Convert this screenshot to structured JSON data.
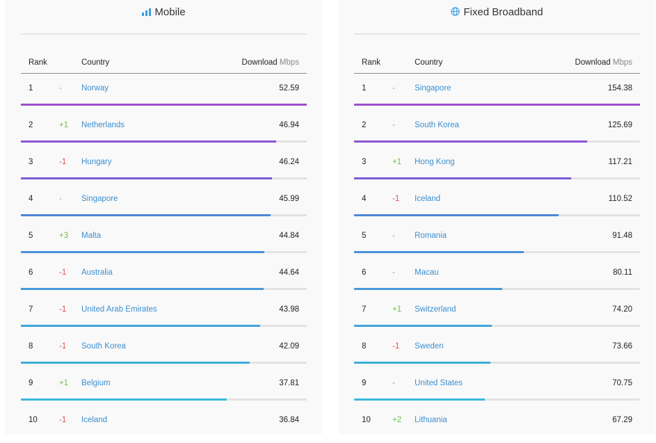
{
  "panels": [
    {
      "title": "Mobile",
      "icon": "signal-bars-icon",
      "header": {
        "rank": "Rank",
        "country": "Country",
        "download": "Download",
        "unit": "Mbps"
      },
      "rows": [
        {
          "rank": "1",
          "change": "-",
          "country": "Norway",
          "value": "52.59"
        },
        {
          "rank": "2",
          "change": "+1",
          "country": "Netherlands",
          "value": "46.94"
        },
        {
          "rank": "3",
          "change": "-1",
          "country": "Hungary",
          "value": "46.24"
        },
        {
          "rank": "4",
          "change": "-",
          "country": "Singapore",
          "value": "45.99"
        },
        {
          "rank": "5",
          "change": "+3",
          "country": "Malta",
          "value": "44.84"
        },
        {
          "rank": "6",
          "change": "-1",
          "country": "Australia",
          "value": "44.64"
        },
        {
          "rank": "7",
          "change": "-1",
          "country": "United Arab Emirates",
          "value": "43.98"
        },
        {
          "rank": "8",
          "change": "-1",
          "country": "South Korea",
          "value": "42.09"
        },
        {
          "rank": "9",
          "change": "+1",
          "country": "Belgium",
          "value": "37.81"
        },
        {
          "rank": "10",
          "change": "-1",
          "country": "Iceland",
          "value": "36.84"
        }
      ]
    },
    {
      "title": "Fixed Broadband",
      "icon": "globe-icon",
      "header": {
        "rank": "Rank",
        "country": "Country",
        "download": "Download",
        "unit": "Mbps"
      },
      "rows": [
        {
          "rank": "1",
          "change": "-",
          "country": "Singapore",
          "value": "154.38"
        },
        {
          "rank": "2",
          "change": "-",
          "country": "South Korea",
          "value": "125.69"
        },
        {
          "rank": "3",
          "change": "+1",
          "country": "Hong Kong",
          "value": "117.21"
        },
        {
          "rank": "4",
          "change": "-1",
          "country": "Iceland",
          "value": "110.52"
        },
        {
          "rank": "5",
          "change": "-",
          "country": "Romania",
          "value": "91.48"
        },
        {
          "rank": "6",
          "change": "-",
          "country": "Macau",
          "value": "80.11"
        },
        {
          "rank": "7",
          "change": "+1",
          "country": "Switzerland",
          "value": "74.20"
        },
        {
          "rank": "8",
          "change": "-1",
          "country": "Sweden",
          "value": "73.66"
        },
        {
          "rank": "9",
          "change": "-",
          "country": "United States",
          "value": "70.75"
        },
        {
          "rank": "10",
          "change": "+2",
          "country": "Lithuania",
          "value": "67.29"
        }
      ]
    }
  ],
  "bar_colors": [
    "#9a4fce",
    "#8b55d2",
    "#7b5bd6",
    "#4f86d9",
    "#4a8fdb",
    "#4599da",
    "#40a5d9",
    "#3caed8",
    "#39b9d8"
  ]
}
